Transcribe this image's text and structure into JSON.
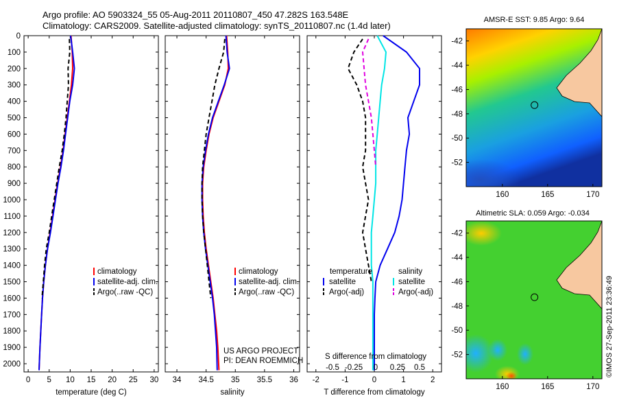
{
  "header": {
    "line1": "Argo profile: AO 5903324_55 05-Aug-2011 20110807_450 47.282S 163.548E",
    "line2": "Climatology: CARS2009. Satellite-adjusted climatology: synTS_20110807.nc (1.4d later)"
  },
  "colors": {
    "red": "#ff0000",
    "blue": "#0000ee",
    "black": "#000000",
    "cyan": "#00e5e5",
    "magenta": "#e000e0",
    "land": "#f7c8a0"
  },
  "chart_data": [
    {
      "id": "temperature",
      "type": "line",
      "xlabel": "temperature (deg C)",
      "xlim": [
        -1,
        31
      ],
      "xticks": [
        0,
        5,
        10,
        15,
        20,
        25,
        30
      ],
      "ylim": [
        0,
        2050
      ],
      "yticks": [
        0,
        100,
        200,
        300,
        400,
        500,
        600,
        700,
        800,
        900,
        1000,
        1100,
        1200,
        1300,
        1400,
        1500,
        1600,
        1700,
        1800,
        1900,
        2000
      ],
      "legend": "lower-right",
      "series": [
        {
          "name": "climatology",
          "color": "red",
          "dash": "",
          "x": [
            10.2,
            10.5,
            10.6,
            10.3,
            9.8,
            9.3,
            8.8,
            8.3,
            7.7,
            7.0,
            6.4,
            5.8,
            5.2,
            4.6,
            4.1,
            3.7,
            3.4,
            3.2,
            3.0,
            2.8,
            2.6
          ],
          "y": [
            0,
            100,
            200,
            300,
            400,
            500,
            600,
            700,
            800,
            900,
            1000,
            1100,
            1200,
            1300,
            1400,
            1500,
            1600,
            1700,
            1800,
            1900,
            2040
          ]
        },
        {
          "name": "satellite-adj. clim.",
          "color": "blue",
          "dash": "",
          "x": [
            10.1,
            10.6,
            11.0,
            10.6,
            9.9,
            9.4,
            8.9,
            8.4,
            7.8,
            7.1,
            6.5,
            5.9,
            5.3,
            4.6,
            4.1,
            3.7,
            3.4,
            3.2,
            3.0,
            2.8,
            2.6
          ],
          "y": [
            0,
            100,
            200,
            300,
            400,
            500,
            600,
            700,
            800,
            900,
            1000,
            1100,
            1200,
            1300,
            1400,
            1500,
            1600,
            1700,
            1800,
            1900,
            2040
          ]
        },
        {
          "name": "Argo(..raw -QC)",
          "color": "black",
          "dash": "6,4",
          "x": [
            9.8,
            9.9,
            9.5,
            9.6,
            9.3,
            9.0,
            8.6,
            8.1,
            7.4,
            6.8,
            6.2,
            5.6,
            5.0,
            4.3,
            3.9,
            3.6,
            3.3
          ],
          "y": [
            20,
            100,
            200,
            300,
            400,
            500,
            600,
            700,
            800,
            900,
            1000,
            1100,
            1200,
            1300,
            1400,
            1500,
            1600
          ]
        }
      ]
    },
    {
      "id": "salinity",
      "type": "line",
      "xlabel": "salinity",
      "xlim": [
        33.8,
        36.1
      ],
      "xticks": [
        34,
        34.5,
        35,
        35.5,
        36
      ],
      "ylim": [
        0,
        2050
      ],
      "legend": "lower-right",
      "annotation": [
        "US ARGO PROJECT",
        "PI: DEAN ROEMMICH"
      ],
      "series": [
        {
          "name": "climatology",
          "color": "red",
          "dash": "",
          "x": [
            34.85,
            34.87,
            34.88,
            34.82,
            34.72,
            34.62,
            34.55,
            34.5,
            34.46,
            34.44,
            34.44,
            34.45,
            34.47,
            34.5,
            34.54,
            34.58,
            34.62,
            34.65,
            34.68,
            34.7,
            34.72
          ],
          "y": [
            0,
            100,
            200,
            300,
            400,
            500,
            600,
            700,
            800,
            900,
            1000,
            1100,
            1200,
            1300,
            1400,
            1500,
            1600,
            1700,
            1800,
            1900,
            2040
          ]
        },
        {
          "name": "satellite-adj. clim.",
          "color": "blue",
          "dash": "",
          "x": [
            34.84,
            34.86,
            34.9,
            34.81,
            34.71,
            34.61,
            34.54,
            34.49,
            34.45,
            34.43,
            34.43,
            34.44,
            34.46,
            34.49,
            34.53,
            34.57,
            34.61,
            34.64,
            34.66,
            34.68,
            34.69
          ],
          "y": [
            0,
            100,
            200,
            300,
            400,
            500,
            600,
            700,
            800,
            900,
            1000,
            1100,
            1200,
            1300,
            1400,
            1500,
            1600,
            1700,
            1800,
            1900,
            2040
          ]
        },
        {
          "name": "Argo(..raw -QC)",
          "color": "black",
          "dash": "6,4",
          "x": [
            34.82,
            34.8,
            34.72,
            34.65,
            34.6,
            34.55,
            34.5,
            34.47,
            34.44,
            34.43,
            34.43,
            34.44,
            34.46,
            34.49,
            34.52,
            34.55,
            34.58
          ],
          "y": [
            20,
            100,
            200,
            300,
            400,
            500,
            600,
            700,
            800,
            900,
            1000,
            1100,
            1200,
            1300,
            1400,
            1500,
            1600
          ]
        }
      ]
    },
    {
      "id": "difference",
      "type": "line",
      "xlabel": "T difference from climatology",
      "xlim": [
        -2.3,
        2.3
      ],
      "xticks": [
        -2,
        -1,
        0,
        1,
        2
      ],
      "top_axis_label": "S difference from climatology",
      "top_ticks": [
        "-0.5",
        "-0.25",
        "0",
        "0.25",
        "0.5"
      ],
      "ylim": [
        0,
        2050
      ],
      "legend": "lower-center",
      "legend_groups": [
        "temperature",
        "salinity"
      ],
      "series": [
        {
          "name": "satellite",
          "group": "temperature",
          "color": "blue",
          "dash": "",
          "x": [
            0.3,
            1.1,
            1.55,
            1.55,
            1.35,
            1.15,
            1.2,
            1.1,
            1.05,
            1.0,
            0.95,
            0.85,
            0.7,
            0.45,
            0.2,
            0.05,
            0.02,
            0.0,
            0.0,
            0.0,
            0.0
          ],
          "y": [
            0,
            100,
            200,
            300,
            400,
            500,
            600,
            700,
            800,
            900,
            1000,
            1100,
            1200,
            1300,
            1400,
            1500,
            1600,
            1700,
            1800,
            1900,
            2040
          ]
        },
        {
          "name": "Argo(-adj)",
          "group": "temperature",
          "color": "black",
          "dash": "6,4",
          "x": [
            -0.4,
            -0.7,
            -0.9,
            -0.6,
            -0.4,
            -0.3,
            -0.3,
            -0.3,
            -0.4,
            -0.3,
            -0.2,
            -0.3,
            -0.4,
            -0.3,
            -0.2,
            -0.1
          ],
          "y": [
            20,
            100,
            200,
            300,
            400,
            500,
            600,
            700,
            800,
            900,
            1000,
            1100,
            1200,
            1300,
            1400,
            1500
          ]
        },
        {
          "name": "satellite",
          "group": "salinity",
          "color": "cyan",
          "dash": "",
          "x": [
            0.1,
            0.4,
            0.35,
            0.25,
            0.2,
            0.15,
            0.1,
            0.05,
            0.05,
            0.05,
            0.0,
            -0.05,
            -0.1,
            -0.1,
            -0.1,
            -0.05,
            -0.05,
            -0.05,
            -0.05,
            -0.05,
            -0.05
          ],
          "y": [
            0,
            100,
            200,
            300,
            400,
            500,
            600,
            700,
            800,
            900,
            1000,
            1100,
            1200,
            1300,
            1400,
            1500,
            1600,
            1700,
            1800,
            1900,
            2040
          ]
        },
        {
          "name": "Argo(-adj)",
          "group": "salinity",
          "color": "magenta",
          "dash": "6,4",
          "x": [
            -0.2,
            -0.4,
            -0.35,
            -0.3,
            -0.2,
            -0.1,
            -0.05,
            0.0,
            0.05
          ],
          "y": [
            20,
            100,
            200,
            300,
            400,
            500,
            600,
            700,
            800
          ]
        }
      ]
    },
    {
      "id": "sst_map",
      "type": "heatmap",
      "title": "AMSR-E SST: 9.85 Argo: 9.64",
      "xlim": [
        156,
        171
      ],
      "ylim": [
        -54,
        -41
      ],
      "xticks": [
        160,
        165,
        170
      ],
      "yticks": [
        -42,
        -44,
        -46,
        -48,
        -50,
        -52
      ],
      "float_position": {
        "lon": 163.548,
        "lat": -47.282
      }
    },
    {
      "id": "sla_map",
      "type": "heatmap",
      "title": "Altimetric SLA: 0.059 Argo: -0.034",
      "xlim": [
        156,
        171
      ],
      "ylim": [
        -54,
        -41
      ],
      "xticks": [
        160,
        165,
        170
      ],
      "yticks": [
        -42,
        -44,
        -46,
        -48,
        -50,
        -52
      ],
      "float_position": {
        "lon": 163.548,
        "lat": -47.282
      }
    }
  ],
  "footer": {
    "stamp": "©IMOS 27-Sep-2011 23:36:49"
  }
}
